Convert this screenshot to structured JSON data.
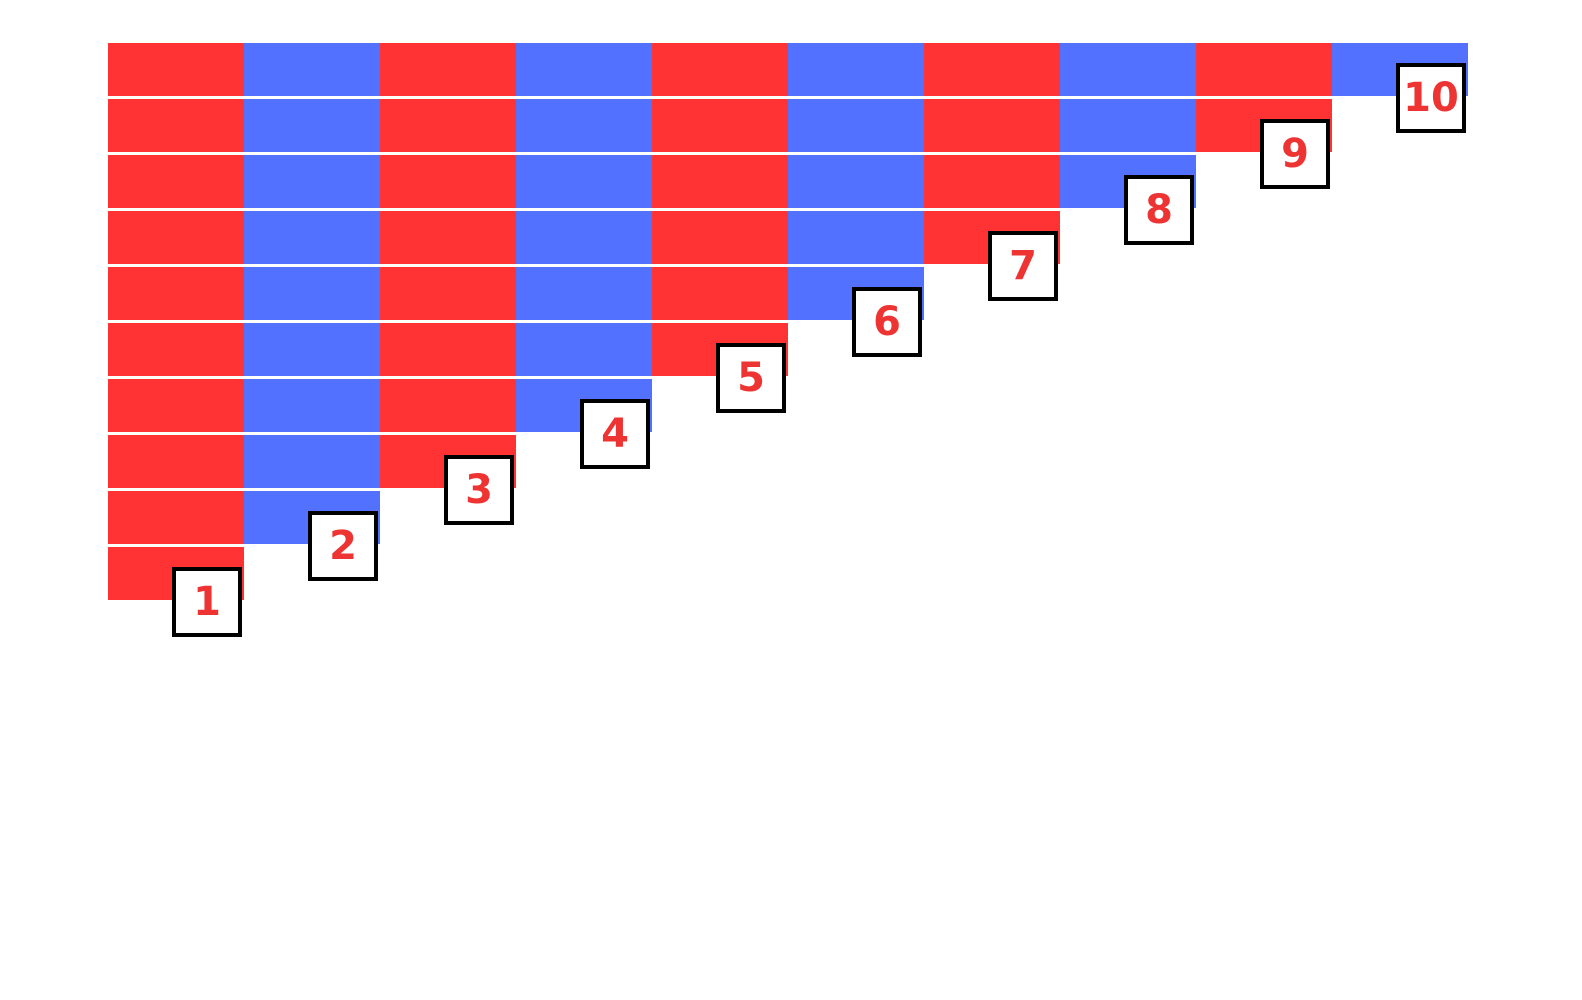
{
  "colors": {
    "red": "#FF3333",
    "blue": "#5271FF",
    "label_text": "#EE3333",
    "label_border": "#000000"
  },
  "rods": [
    {
      "length": 1,
      "label": "1"
    },
    {
      "length": 2,
      "label": "2"
    },
    {
      "length": 3,
      "label": "3"
    },
    {
      "length": 4,
      "label": "4"
    },
    {
      "length": 5,
      "label": "5"
    },
    {
      "length": 6,
      "label": "6"
    },
    {
      "length": 7,
      "label": "7"
    },
    {
      "length": 8,
      "label": "8"
    },
    {
      "length": 9,
      "label": "9"
    },
    {
      "length": 10,
      "label": "10"
    }
  ]
}
